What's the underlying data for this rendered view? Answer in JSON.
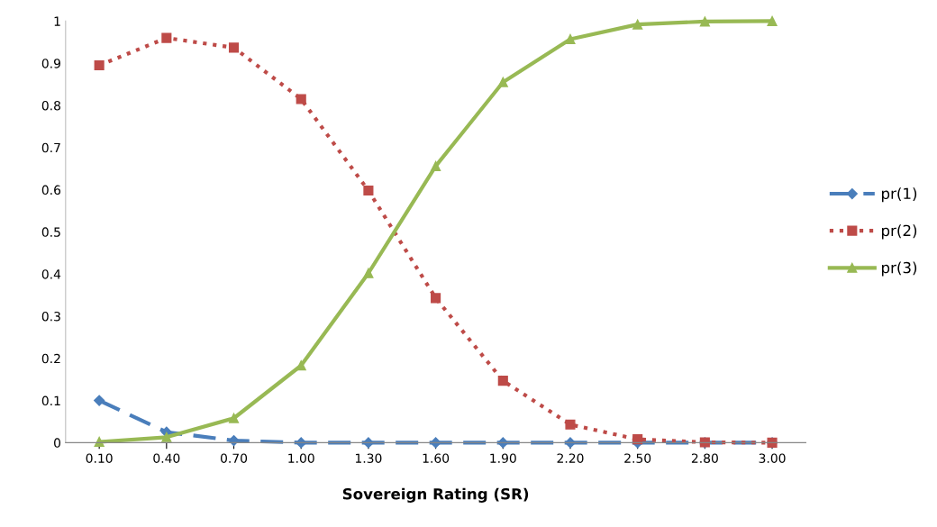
{
  "chart_data": {
    "type": "line",
    "xlabel": "Sovereign Rating (SR)",
    "categories": [
      "0.10",
      "0.40",
      "0.70",
      "1.00",
      "1.30",
      "1.60",
      "1.90",
      "2.20",
      "2.50",
      "2.80",
      "3.00"
    ],
    "series": [
      {
        "name": "pr(1)",
        "color": "#4a7ebb",
        "line_style": "dashed",
        "marker": "diamond",
        "values": [
          0.1,
          0.025,
          0.005,
          0,
          0,
          0,
          0,
          0,
          0,
          0,
          0
        ]
      },
      {
        "name": "pr(2)",
        "color": "#be4b48",
        "line_style": "dotted",
        "marker": "square",
        "values": [
          0.895,
          0.96,
          0.937,
          0.815,
          0.598,
          0.343,
          0.147,
          0.043,
          0.008,
          0.001,
          0
        ]
      },
      {
        "name": "pr(3)",
        "color": "#98b954",
        "line_style": "solid",
        "marker": "triangle",
        "values": [
          0.002,
          0.013,
          0.058,
          0.183,
          0.402,
          0.656,
          0.855,
          0.957,
          0.992,
          0.999,
          1.0
        ]
      }
    ],
    "ylim": [
      0,
      1
    ],
    "yticks": [
      0,
      0.1,
      0.2,
      0.3,
      0.4,
      0.5,
      0.6,
      0.7,
      0.8,
      0.9,
      1
    ],
    "grid": false,
    "legend": "right"
  }
}
